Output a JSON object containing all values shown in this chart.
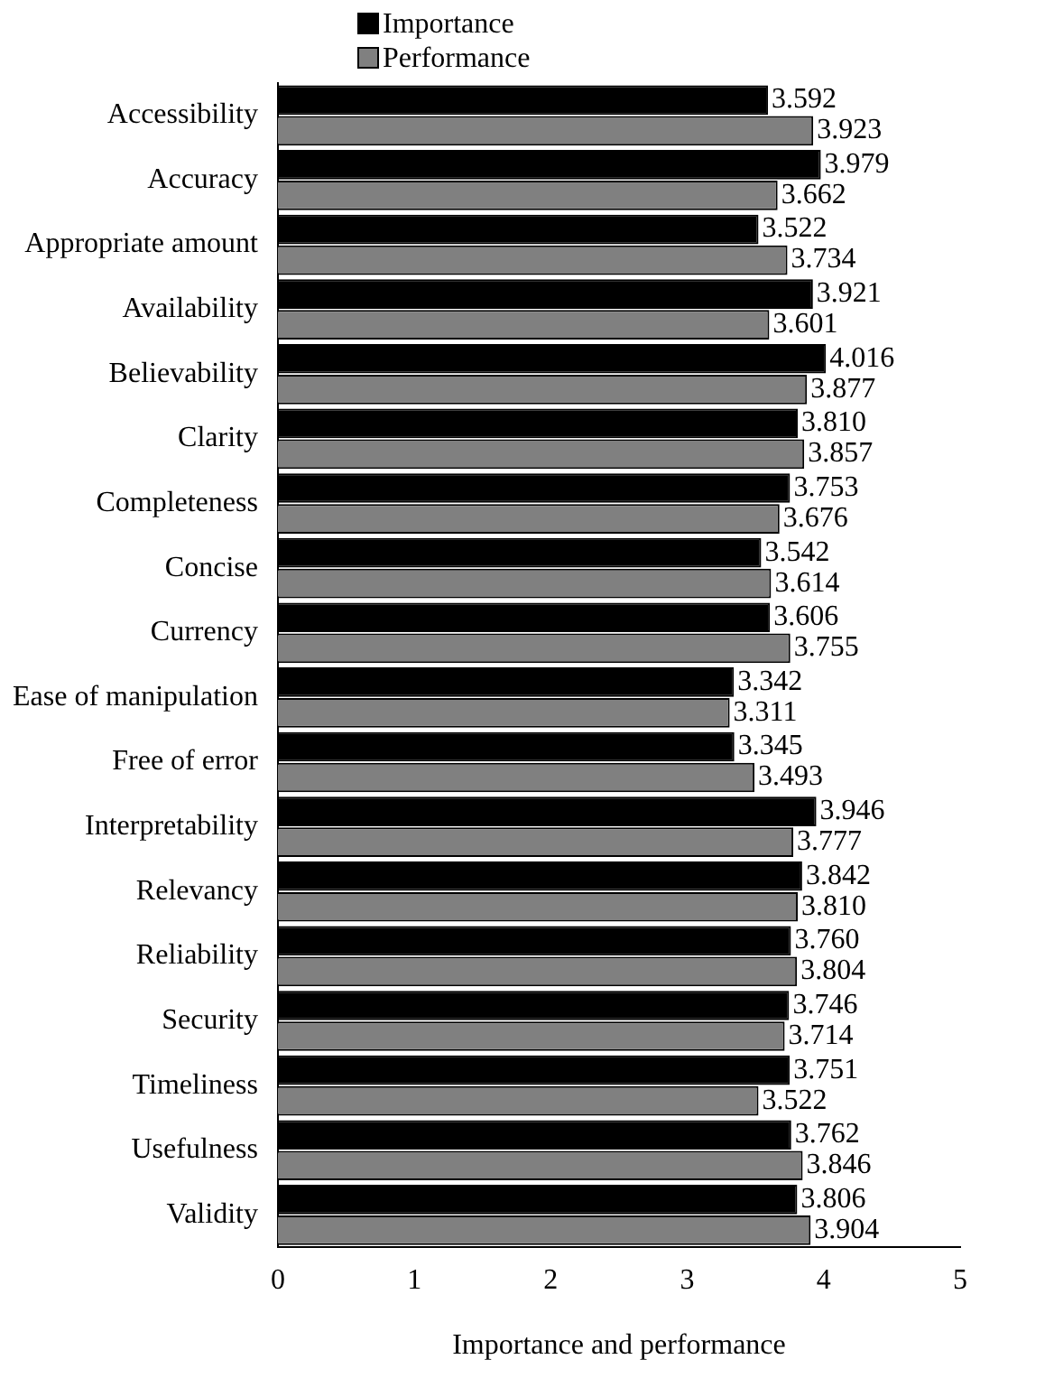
{
  "chart_data": {
    "type": "bar",
    "orientation": "horizontal",
    "xlabel": "Importance and performance",
    "categories": [
      "Accessibility",
      "Accuracy",
      "Appropriate amount",
      "Availability",
      "Believability",
      "Clarity",
      "Completeness",
      "Concise",
      "Currency",
      "Ease of manipulation",
      "Free of error",
      "Interpretability",
      "Relevancy",
      "Reliability",
      "Security",
      "Timeliness",
      "Usefulness",
      "Validity"
    ],
    "series": [
      {
        "name": "Importance",
        "color": "#000000",
        "values": [
          3.592,
          3.979,
          3.522,
          3.921,
          4.016,
          3.81,
          3.753,
          3.542,
          3.606,
          3.342,
          3.345,
          3.946,
          3.842,
          3.76,
          3.746,
          3.751,
          3.762,
          3.806
        ],
        "value_labels": [
          "3.592",
          "3.979",
          "3.522",
          "3.921",
          "4.016",
          "3.810",
          "3.753",
          "3.542",
          "3.606",
          "3.342",
          "3.345",
          "3.946",
          "3.842",
          "3.760",
          "3.746",
          "3.751",
          "3.762",
          "3.806"
        ]
      },
      {
        "name": "Performance",
        "color": "#808080",
        "values": [
          3.923,
          3.662,
          3.734,
          3.601,
          3.877,
          3.857,
          3.676,
          3.614,
          3.755,
          3.311,
          3.493,
          3.777,
          3.81,
          3.804,
          3.714,
          3.522,
          3.846,
          3.904
        ],
        "value_labels": [
          "3.923",
          "3.662",
          "3.734",
          "3.601",
          "3.877",
          "3.857",
          "3.676",
          "3.614",
          "3.755",
          "3.311",
          "3.493",
          "3.777",
          "3.810",
          "3.804",
          "3.714",
          "3.522",
          "3.846",
          "3.904"
        ]
      }
    ],
    "xlim": [
      0,
      5
    ],
    "xticks": [
      0,
      1,
      2,
      3,
      4,
      5
    ],
    "grid": false,
    "legend": "top left"
  }
}
